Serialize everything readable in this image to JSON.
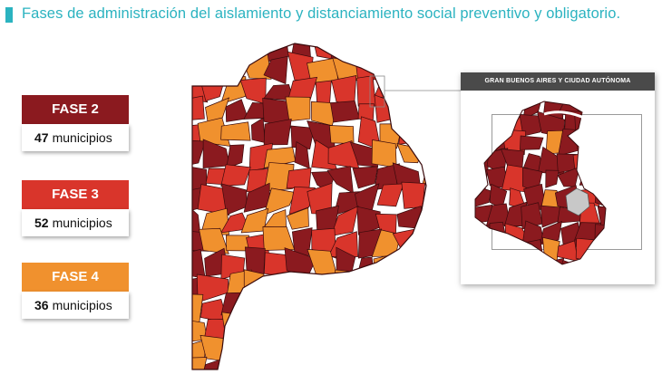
{
  "title": "Fases de administración del aislamiento y distanciamiento social preventivo y obligatorio.",
  "colors": {
    "accent": "#2bb3c0",
    "fase2": "#8b1a1f",
    "fase3": "#d9352b",
    "fase4": "#f0912e",
    "caba": "#c8c8c8"
  },
  "legend": [
    {
      "phase": "FASE 2",
      "count": "47",
      "unit": "municipios"
    },
    {
      "phase": "FASE 3",
      "count": "52",
      "unit": "municipios"
    },
    {
      "phase": "FASE 4",
      "count": "36",
      "unit": "municipios"
    }
  ],
  "inset": {
    "title": "GRAN BUENOS AIRES Y CIUDAD AUTÓNOMA"
  }
}
